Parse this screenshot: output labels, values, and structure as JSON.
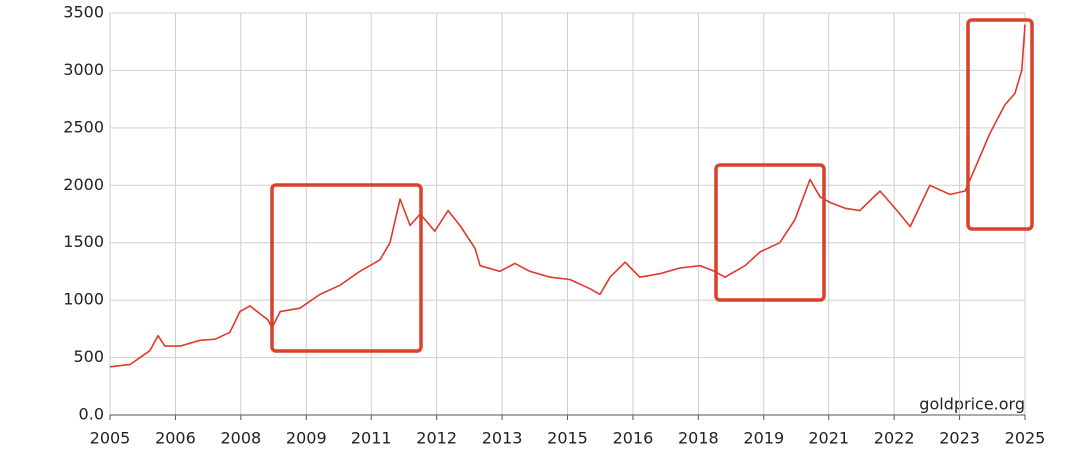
{
  "chart_data": {
    "type": "line",
    "source": "goldprice.org",
    "color": "#e0392b",
    "grid": true,
    "x": [
      2005.0,
      2005.44,
      2005.87,
      2006.05,
      2006.2,
      2006.53,
      2006.97,
      2007.3,
      2007.62,
      2007.84,
      2008.06,
      2008.28,
      2008.45,
      2008.54,
      2008.72,
      2009.15,
      2009.59,
      2010.03,
      2010.46,
      2010.9,
      2011.12,
      2011.34,
      2011.56,
      2011.78,
      2012.1,
      2012.39,
      2012.65,
      2012.98,
      2013.09,
      2013.52,
      2013.85,
      2014.18,
      2014.62,
      2015.05,
      2015.49,
      2015.71,
      2015.93,
      2016.26,
      2016.58,
      2017.02,
      2017.46,
      2017.9,
      2018.22,
      2018.44,
      2018.88,
      2019.21,
      2019.64,
      2019.97,
      2020.3,
      2020.52,
      2020.74,
      2021.07,
      2021.39,
      2021.83,
      2022.16,
      2022.49,
      2022.92,
      2023.36,
      2023.69,
      2023.91,
      2024.23,
      2024.56,
      2024.78,
      2024.93,
      2025.0
    ],
    "values": [
      420,
      440,
      560,
      690,
      600,
      600,
      650,
      660,
      720,
      900,
      950,
      880,
      830,
      760,
      900,
      930,
      1050,
      1130,
      1250,
      1350,
      1500,
      1880,
      1650,
      1750,
      1600,
      1780,
      1650,
      1450,
      1300,
      1250,
      1320,
      1250,
      1200,
      1180,
      1100,
      1050,
      1200,
      1330,
      1200,
      1230,
      1280,
      1300,
      1250,
      1200,
      1300,
      1420,
      1500,
      1700,
      2050,
      1900,
      1850,
      1800,
      1780,
      1950,
      1800,
      1640,
      2000,
      1920,
      1950,
      2150,
      2450,
      2700,
      2800,
      3000,
      3400
    ],
    "xlim": [
      2005,
      2025
    ],
    "xticks": [
      {
        "value": 2005,
        "label": "2005"
      },
      {
        "value": 2006.43,
        "label": "2006"
      },
      {
        "value": 2007.86,
        "label": "2008"
      },
      {
        "value": 2009.29,
        "label": "2009"
      },
      {
        "value": 2010.71,
        "label": "2011"
      },
      {
        "value": 2012.14,
        "label": "2012"
      },
      {
        "value": 2013.57,
        "label": "2013"
      },
      {
        "value": 2015,
        "label": "2015"
      },
      {
        "value": 2016.43,
        "label": "2016"
      },
      {
        "value": 2017.86,
        "label": "2018"
      },
      {
        "value": 2019.29,
        "label": "2019"
      },
      {
        "value": 2020.71,
        "label": "2021"
      },
      {
        "value": 2022.14,
        "label": "2022"
      },
      {
        "value": 2023.57,
        "label": "2023"
      },
      {
        "value": 2025,
        "label": "2025"
      }
    ],
    "ylim": [
      0,
      3500
    ],
    "yticks": [
      {
        "value": 0,
        "label": "0.0"
      },
      500,
      1000,
      1500,
      2000,
      2500,
      3000,
      3500
    ]
  }
}
